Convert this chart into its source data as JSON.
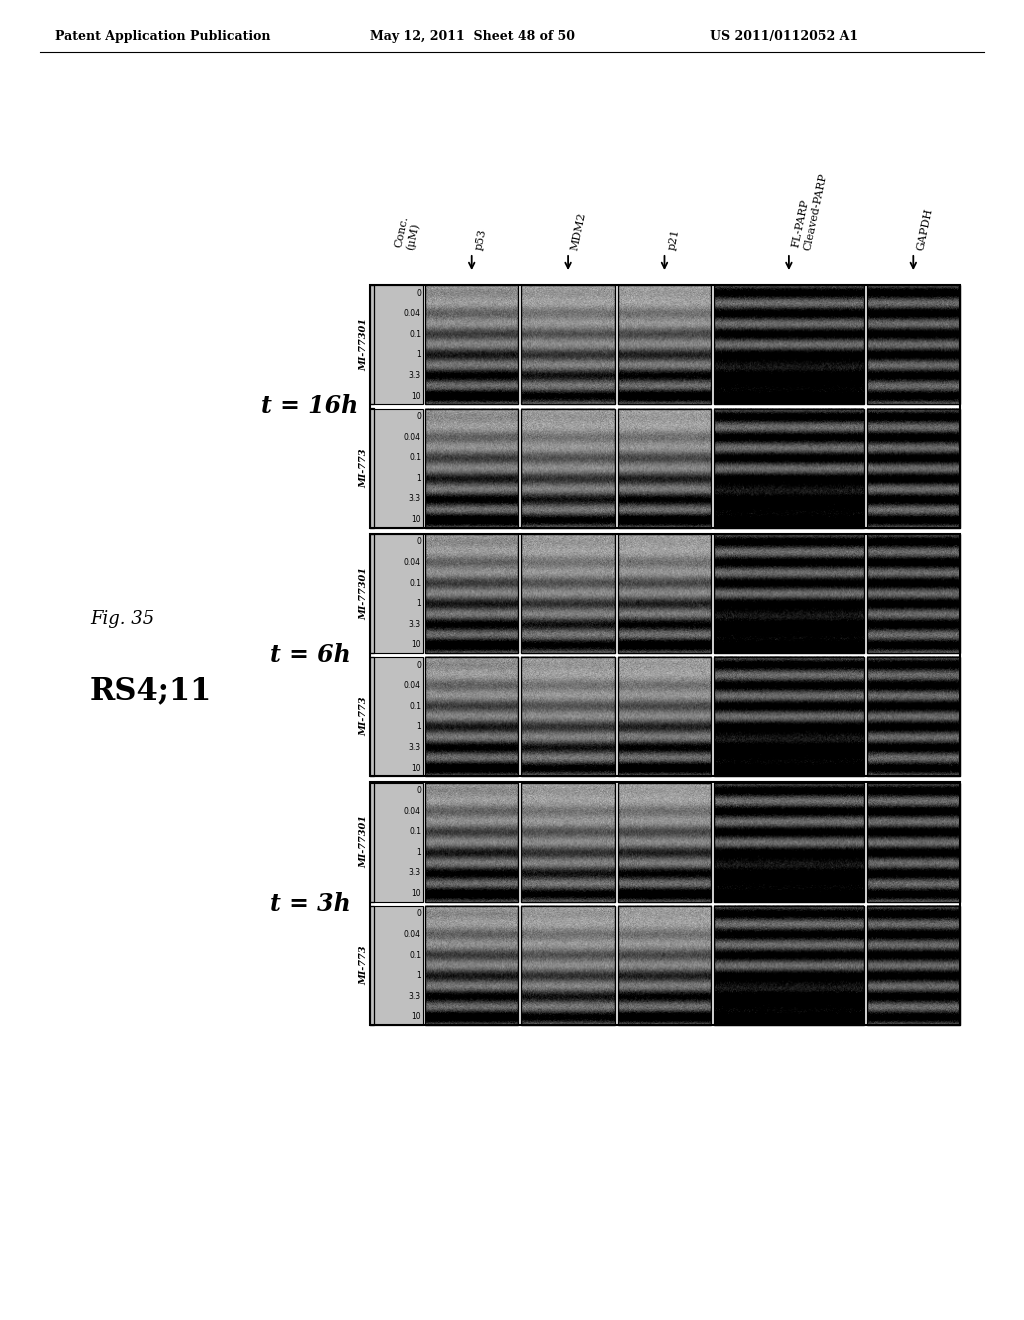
{
  "header_left": "Patent Application Publication",
  "header_center": "May 12, 2011  Sheet 48 of 50",
  "header_right": "US 2011/0112052 A1",
  "fig_label": "Fig. 35",
  "cell_line": "RS4;11",
  "time_points": [
    "t = 3h",
    "t = 6h",
    "t = 16h"
  ],
  "compounds": [
    "MI-773",
    "MI-77301"
  ],
  "col_labels": [
    "Conc.\n(μM)",
    "p53",
    "MDM2",
    "p21",
    "FL-PARP\nCleaved-PARP",
    "GAPDH"
  ],
  "arrow_labels": [
    "p53",
    "MDM2",
    "p21",
    "FL-PARP",
    "Cleaved-PARP",
    "GAPDH"
  ],
  "conc_values": [
    "0",
    "0.04",
    "0.1",
    "1",
    "3.3",
    "10"
  ],
  "background_color": "#ffffff",
  "blot_bg": "#b8b8b8"
}
